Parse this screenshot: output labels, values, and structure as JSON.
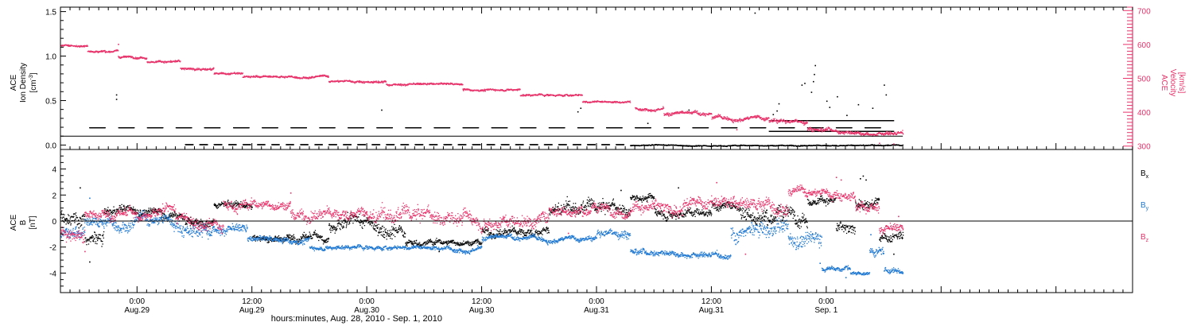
{
  "colors": {
    "black": "#000000",
    "blue": "#1f78d2",
    "pink": "#e8336b"
  },
  "chart_data": [
    {
      "type": "scatter",
      "panel": "top",
      "ylabel": {
        "line1": "ACE",
        "line2": "Ion Density",
        "line3": "[cm",
        "sup": "-3",
        "line3_end": "]"
      },
      "y2label": {
        "line1": "ACE",
        "line2": "Velocity",
        "line3": "[km/s]"
      },
      "ylim": [
        -0.05,
        1.55
      ],
      "y_ticks": [
        "0.0",
        "0.5",
        "1.0",
        "1.5"
      ],
      "y_tick_values": [
        0.0,
        0.5,
        1.0,
        1.5
      ],
      "y2lim": [
        290,
        710
      ],
      "y2_ticks": [
        "300",
        "400",
        "500",
        "600",
        "700"
      ],
      "y2_tick_values": [
        300,
        400,
        500,
        600,
        700
      ],
      "reference_lines": [
        0.1
      ],
      "series": [
        {
          "color_key": "black",
          "axis": "left",
          "segments": [
            {
              "x0": -5.0,
              "x1": 79.0,
              "base": 0.2,
              "noise": 0.0,
              "gap": 3.0
            },
            {
              "x0": 5.0,
              "x1": 51.5,
              "base": 0.01,
              "noise": 0.0,
              "gap": 1.5
            },
            {
              "x0": 51.5,
              "x1": 80.0,
              "base": 0.0,
              "noise": 0.015,
              "gap": 0.0
            },
            {
              "x0": 66.0,
              "x1": 79.0,
              "base": 0.28,
              "noise": 0.0,
              "gap": 0.0
            },
            {
              "x0": 66.0,
              "x1": 79.0,
              "base": 0.16,
              "noise": 0.0,
              "gap": 0.0
            }
          ],
          "points": [
            [
              -2.2,
              0.57
            ],
            [
              -2.2,
              0.52
            ],
            [
              46.3,
              0.42
            ],
            [
              57.6,
              0.4
            ],
            [
              53.3,
              0.25
            ],
            [
              70.8,
              0.9
            ],
            [
              70.7,
              0.8
            ],
            [
              70.6,
              0.72
            ],
            [
              70.4,
              0.6
            ],
            [
              69.7,
              0.7
            ],
            [
              69.4,
              0.68
            ],
            [
              72.0,
              0.5
            ],
            [
              72.3,
              0.43
            ],
            [
              73.1,
              0.55
            ],
            [
              75.3,
              0.46
            ],
            [
              76.8,
              0.42
            ],
            [
              78.0,
              0.68
            ],
            [
              78.2,
              0.57
            ],
            [
              67.0,
              0.47
            ],
            [
              66.8,
              0.39
            ],
            [
              64.5,
              1.49
            ],
            [
              25.5,
              0.4
            ],
            [
              46.0,
              0.38
            ],
            [
              66.4,
              0.35
            ],
            [
              74.1,
              0.34
            ]
          ]
        },
        {
          "color_key": "pink",
          "axis": "right",
          "segments": [
            {
              "x0": -8.0,
              "x1": -5.2,
              "base": 598,
              "noise": 7.0,
              "gap": 0.0
            },
            {
              "x0": -5.2,
              "x1": -2.0,
              "base": 582,
              "noise": 8.0,
              "gap": 0.0
            },
            {
              "x0": -2.0,
              "x1": 1.0,
              "base": 565,
              "noise": 9.0,
              "gap": 0.0
            },
            {
              "x0": 1.0,
              "x1": 4.5,
              "base": 550,
              "noise": 9.0,
              "gap": 0.0
            },
            {
              "x0": 4.5,
              "x1": 8.0,
              "base": 530,
              "noise": 9.0,
              "gap": 0.0
            },
            {
              "x0": 8.0,
              "x1": 11.0,
              "base": 515,
              "noise": 8.0,
              "gap": 0.0
            },
            {
              "x0": 11.0,
              "x1": 20.0,
              "base": 506,
              "noise": 8.0,
              "gap": 0.0
            },
            {
              "x0": 20.0,
              "x1": 26.0,
              "base": 492,
              "noise": 8.0,
              "gap": 0.0
            },
            {
              "x0": 26.0,
              "x1": 34.0,
              "base": 484,
              "noise": 8.0,
              "gap": 0.0
            },
            {
              "x0": 34.0,
              "x1": 40.0,
              "base": 468,
              "noise": 8.0,
              "gap": 0.0
            },
            {
              "x0": 40.0,
              "x1": 46.5,
              "base": 452,
              "noise": 8.0,
              "gap": 0.0
            },
            {
              "x0": 46.5,
              "x1": 51.5,
              "base": 432,
              "noise": 8.0,
              "gap": 0.0
            },
            {
              "x0": 52.0,
              "x1": 55.0,
              "base": 414,
              "noise": 10.0,
              "gap": 0.0
            },
            {
              "x0": 55.0,
              "x1": 60.0,
              "base": 396,
              "noise": 14.0,
              "gap": 0.0
            },
            {
              "x0": 60.0,
              "x1": 66.0,
              "base": 385,
              "noise": 15.0,
              "gap": 0.0
            },
            {
              "x0": 66.0,
              "x1": 70.0,
              "base": 375,
              "noise": 16.0,
              "gap": 0.0
            },
            {
              "x0": 70.0,
              "x1": 73.0,
              "base": 352,
              "noise": 15.0,
              "gap": 0.0
            },
            {
              "x0": 73.0,
              "x1": 76.0,
              "base": 343,
              "noise": 15.0,
              "gap": 0.0
            },
            {
              "x0": 76.0,
              "x1": 80.0,
              "base": 338,
              "noise": 15.0,
              "gap": 0.0
            }
          ],
          "points": [
            [
              -2.0,
              602
            ],
            [
              34.0,
              470
            ],
            [
              77.5,
              310
            ],
            [
              79.0,
              308
            ],
            [
              62.6,
              350
            ]
          ]
        }
      ]
    },
    {
      "type": "scatter",
      "panel": "bottom",
      "ylabel": {
        "line1": "ACE",
        "line2": "B",
        "line3": "[nT]"
      },
      "ylim": [
        -5.5,
        5.5
      ],
      "y_ticks": [
        "-4",
        "-2",
        "0",
        "2",
        "4"
      ],
      "y_tick_values": [
        -4,
        -2,
        0,
        2,
        4
      ],
      "reference_lines": [
        0
      ],
      "legend_placement": "right",
      "legend": [
        {
          "label": "B",
          "sub": "x",
          "color_key": "black"
        },
        {
          "label": "B",
          "sub": "y",
          "color_key": "blue"
        },
        {
          "label": "B",
          "sub": "z",
          "color_key": "pink"
        }
      ],
      "series": [
        {
          "name": "Bx",
          "color_key": "black",
          "segments": [
            {
              "x0": -8.0,
              "x1": -5.5,
              "base": 0.5,
              "noise": 1.5,
              "gap": 0.0
            },
            {
              "x0": -5.5,
              "x1": -3.5,
              "base": -1.5,
              "noise": 1.5,
              "gap": 0.0
            },
            {
              "x0": -3.5,
              "x1": 2.5,
              "base": 0.8,
              "noise": 0.8,
              "gap": 0.0
            },
            {
              "x0": 2.5,
              "x1": 5.0,
              "base": 0.5,
              "noise": 0.8,
              "gap": 0.0
            },
            {
              "x0": 5.0,
              "x1": 8.0,
              "base": -0.2,
              "noise": 1.0,
              "gap": 0.0
            },
            {
              "x0": 8.0,
              "x1": 12.0,
              "base": 1.3,
              "noise": 0.6,
              "gap": 0.0
            },
            {
              "x0": 12.0,
              "x1": 20.0,
              "base": -1.2,
              "noise": 0.8,
              "gap": 0.0
            },
            {
              "x0": 20.0,
              "x1": 28.0,
              "base": -0.4,
              "noise": 1.4,
              "gap": 0.0
            },
            {
              "x0": 28.0,
              "x1": 36.0,
              "base": -1.6,
              "noise": 0.6,
              "gap": 0.0
            },
            {
              "x0": 36.0,
              "x1": 43.0,
              "base": -0.8,
              "noise": 0.9,
              "gap": 0.0
            },
            {
              "x0": 43.0,
              "x1": 51.5,
              "base": 0.9,
              "noise": 1.3,
              "gap": 0.0
            },
            {
              "x0": 51.5,
              "x1": 54.0,
              "base": 1.8,
              "noise": 0.7,
              "gap": 0.0
            },
            {
              "x0": 54.0,
              "x1": 60.0,
              "base": 0.9,
              "noise": 0.9,
              "gap": 0.0
            },
            {
              "x0": 60.0,
              "x1": 63.0,
              "base": 1.2,
              "noise": 0.8,
              "gap": 0.0
            },
            {
              "x0": 63.0,
              "x1": 70.0,
              "base": 0.6,
              "noise": 1.5,
              "gap": 0.0
            },
            {
              "x0": 70.0,
              "x1": 73.0,
              "base": 1.6,
              "noise": 0.9,
              "gap": 0.0
            },
            {
              "x0": 73.0,
              "x1": 75.0,
              "base": -0.6,
              "noise": 1.1,
              "gap": 0.0
            },
            {
              "x0": 75.0,
              "x1": 77.5,
              "base": 1.5,
              "noise": 1.0,
              "gap": 0.0
            },
            {
              "x0": 77.5,
              "x1": 80.0,
              "base": -1.2,
              "noise": 1.0,
              "gap": 0.0
            }
          ],
          "points": [
            [
              75.5,
              3.3
            ],
            [
              75.8,
              3.5
            ],
            [
              76.1,
              3.2
            ],
            [
              50.5,
              2.4
            ],
            [
              -6.0,
              2.6
            ],
            [
              77.6,
              -2.2
            ],
            [
              79.0,
              -2.5
            ],
            [
              -5.0,
              -3.1
            ],
            [
              31.5,
              -2.3
            ],
            [
              56.5,
              2.6
            ]
          ]
        },
        {
          "name": "By",
          "color_key": "blue",
          "segments": [
            {
              "x0": -8.0,
              "x1": -5.5,
              "base": -1.0,
              "noise": 1.2,
              "gap": 0.0
            },
            {
              "x0": -5.5,
              "x1": 4.0,
              "base": 0.0,
              "noise": 1.2,
              "gap": 0.0
            },
            {
              "x0": 4.0,
              "x1": 8.0,
              "base": -0.5,
              "noise": 1.3,
              "gap": 0.0
            },
            {
              "x0": 8.0,
              "x1": 11.5,
              "base": -0.6,
              "noise": 0.9,
              "gap": 0.0
            },
            {
              "x0": 11.5,
              "x1": 18.0,
              "base": -1.4,
              "noise": 0.6,
              "gap": 0.0
            },
            {
              "x0": 18.0,
              "x1": 36.0,
              "base": -2.0,
              "noise": 0.45,
              "gap": 0.0
            },
            {
              "x0": 36.0,
              "x1": 48.0,
              "base": -1.3,
              "noise": 0.5,
              "gap": 0.0
            },
            {
              "x0": 48.0,
              "x1": 51.5,
              "base": -0.8,
              "noise": 0.8,
              "gap": 0.0
            },
            {
              "x0": 51.5,
              "x1": 57.0,
              "base": -2.3,
              "noise": 0.6,
              "gap": 0.0
            },
            {
              "x0": 57.0,
              "x1": 62.0,
              "base": -2.6,
              "noise": 0.6,
              "gap": 0.0
            },
            {
              "x0": 62.0,
              "x1": 68.0,
              "base": -0.8,
              "noise": 1.6,
              "gap": 0.0
            },
            {
              "x0": 68.0,
              "x1": 71.5,
              "base": -1.2,
              "noise": 1.5,
              "gap": 0.0
            },
            {
              "x0": 71.5,
              "x1": 74.5,
              "base": -3.6,
              "noise": 0.5,
              "gap": 0.0
            },
            {
              "x0": 74.5,
              "x1": 76.5,
              "base": -4.0,
              "noise": 0.4,
              "gap": 0.0
            },
            {
              "x0": 76.5,
              "x1": 78.0,
              "base": -2.4,
              "noise": 1.0,
              "gap": 0.0
            },
            {
              "x0": 78.0,
              "x1": 80.0,
              "base": -3.8,
              "noise": 0.5,
              "gap": 0.0
            }
          ],
          "points": [
            [
              71.3,
              -3.2
            ],
            [
              74.0,
              -4.3
            ],
            [
              76.6,
              -1.0
            ],
            [
              -5.0,
              1.8
            ]
          ]
        },
        {
          "name": "Bz",
          "color_key": "pink",
          "segments": [
            {
              "x0": -8.0,
              "x1": -5.5,
              "base": -0.8,
              "noise": 1.5,
              "gap": 0.0
            },
            {
              "x0": -5.5,
              "x1": 4.0,
              "base": 0.6,
              "noise": 1.0,
              "gap": 0.0
            },
            {
              "x0": 4.0,
              "x1": 9.0,
              "base": 0.1,
              "noise": 1.2,
              "gap": 0.0
            },
            {
              "x0": 9.0,
              "x1": 16.0,
              "base": 1.3,
              "noise": 1.0,
              "gap": 0.0
            },
            {
              "x0": 16.0,
              "x1": 24.0,
              "base": 0.6,
              "noise": 1.2,
              "gap": 0.0
            },
            {
              "x0": 24.0,
              "x1": 34.0,
              "base": 0.3,
              "noise": 1.5,
              "gap": 0.0
            },
            {
              "x0": 34.0,
              "x1": 43.0,
              "base": 0.3,
              "noise": 1.3,
              "gap": 0.0
            },
            {
              "x0": 43.0,
              "x1": 51.5,
              "base": 1.0,
              "noise": 1.0,
              "gap": 0.0
            },
            {
              "x0": 51.5,
              "x1": 57.0,
              "base": 1.0,
              "noise": 1.2,
              "gap": 0.0
            },
            {
              "x0": 57.0,
              "x1": 63.0,
              "base": 1.3,
              "noise": 1.2,
              "gap": 0.0
            },
            {
              "x0": 63.0,
              "x1": 68.0,
              "base": 1.4,
              "noise": 1.4,
              "gap": 0.0
            },
            {
              "x0": 68.0,
              "x1": 75.0,
              "base": 2.1,
              "noise": 0.9,
              "gap": 0.0
            },
            {
              "x0": 75.0,
              "x1": 77.5,
              "base": 1.2,
              "noise": 1.0,
              "gap": 0.0
            },
            {
              "x0": 77.5,
              "x1": 80.0,
              "base": -0.6,
              "noise": 0.9,
              "gap": 0.0
            }
          ],
          "points": [
            [
              73.0,
              3.4
            ],
            [
              73.5,
              3.2
            ],
            [
              16.0,
              2.2
            ],
            [
              60.5,
              3.0
            ],
            [
              -5.5,
              -2.3
            ],
            [
              45.0,
              -0.9
            ],
            [
              63.5,
              -2.5
            ],
            [
              79.5,
              0.4
            ]
          ]
        }
      ]
    }
  ],
  "x_axis": {
    "range_hours": [
      -8.0,
      104.0
    ],
    "tick_hours": [
      0,
      12,
      24,
      36,
      48,
      60,
      72,
      84,
      96
    ],
    "tick_labels": [
      {
        "time": "0:00",
        "date": "Aug.29"
      },
      {
        "time": "12:00",
        "date": "Aug.29"
      },
      {
        "time": "0:00",
        "date": "Aug.30"
      },
      {
        "time": "12:00",
        "date": "Aug.30"
      },
      {
        "time": "0:00",
        "date": "Aug.31"
      },
      {
        "time": "12:00",
        "date": "Aug.31"
      },
      {
        "time": "0:00",
        "date": "Sep. 1"
      }
    ],
    "label_hours": [
      0,
      12,
      24,
      36,
      48,
      60,
      72
    ],
    "label": "hours:minutes, Aug. 28, 2010 - Sep.  1, 2010"
  }
}
